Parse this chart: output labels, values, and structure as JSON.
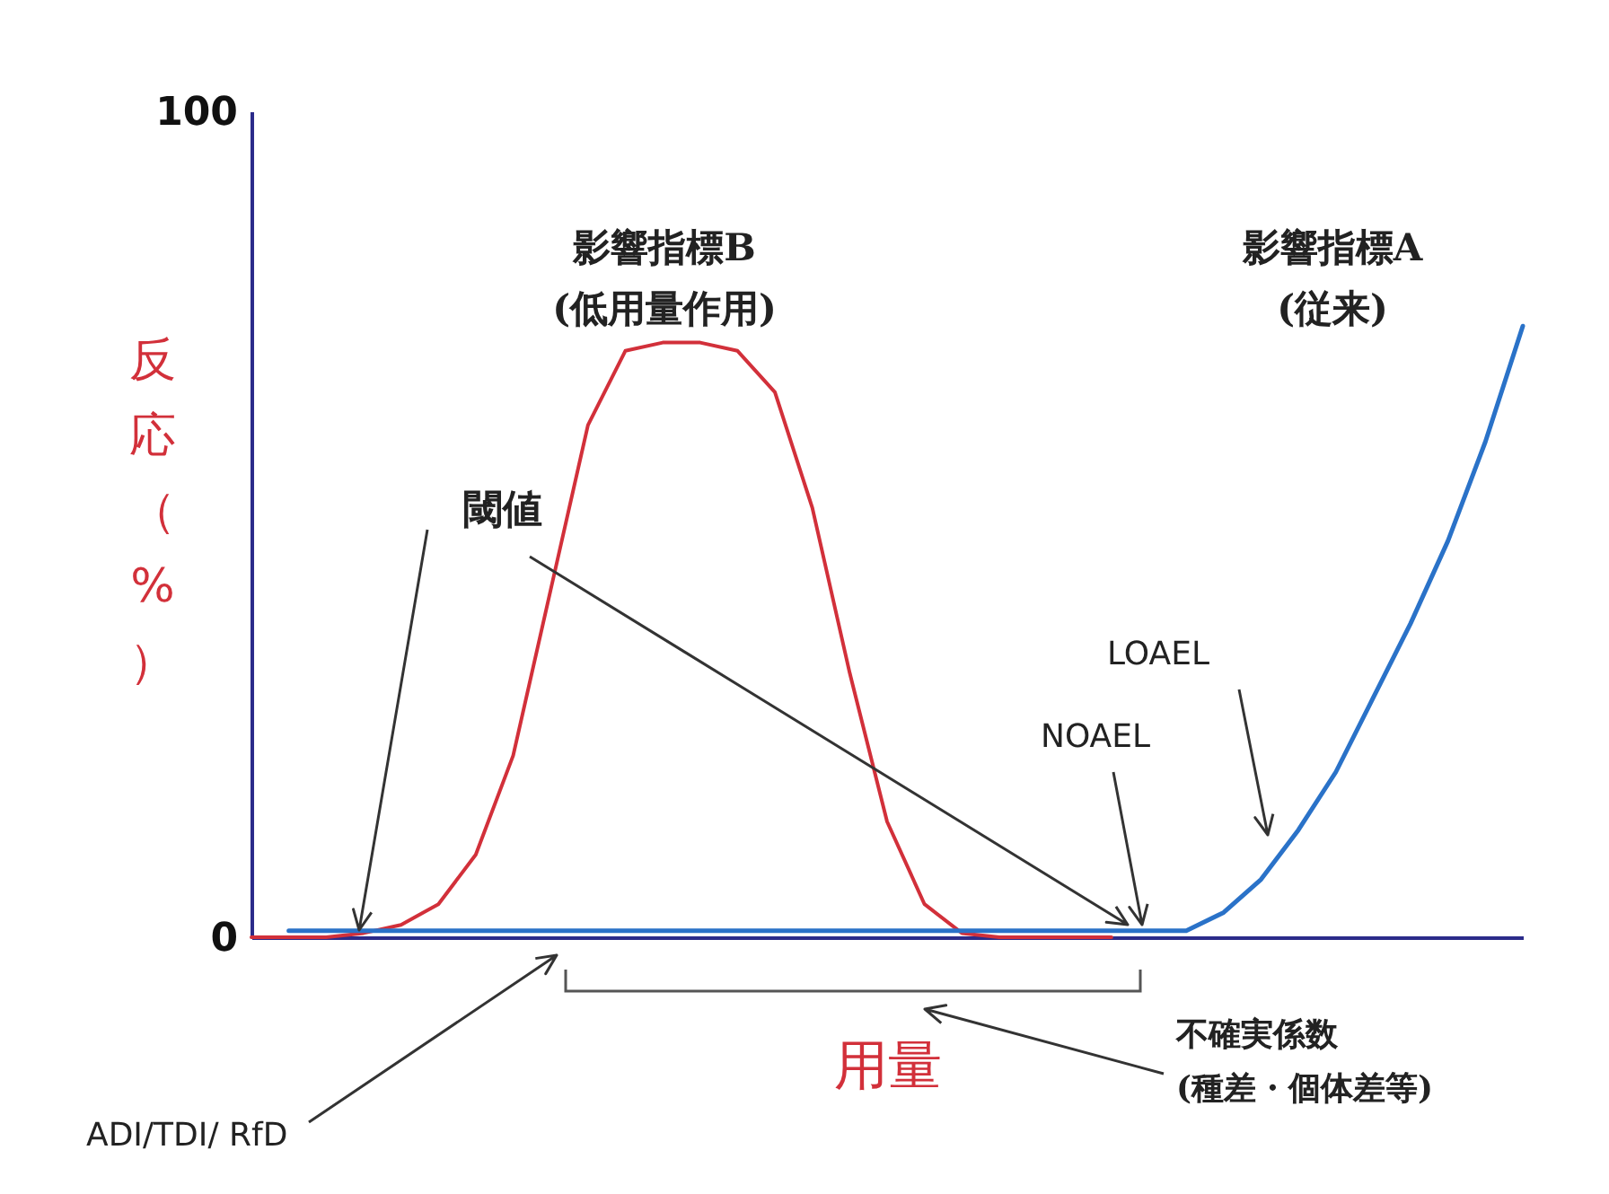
{
  "chart_data": {
    "type": "line",
    "ylabel": "反応（%）",
    "xlabel": "用量",
    "categories": [
      null,
      null,
      null,
      null,
      null,
      null,
      null,
      null,
      null,
      null,
      null,
      null,
      null,
      null,
      null,
      null,
      null,
      null,
      null,
      null,
      null,
      null,
      null,
      null,
      null,
      null,
      null,
      null,
      null,
      null,
      null,
      null,
      null,
      null,
      null
    ],
    "series": [
      {
        "name": "影響指標B\n(低用量作用)",
        "color": "#d2303a",
        "values": [
          0,
          0,
          0,
          0.5,
          1.5,
          4,
          10,
          22,
          42,
          62,
          71,
          72,
          72,
          71,
          66,
          52,
          32,
          14,
          4,
          0.5,
          0,
          0,
          0,
          0,
          null,
          null,
          null,
          null,
          null,
          null,
          null,
          null,
          null,
          null,
          null
        ]
      },
      {
        "name": "影響指標A\n(従来)",
        "color": "#2a72c8",
        "values": [
          null,
          0.8,
          0.8,
          0.8,
          0.8,
          0.8,
          0.8,
          0.8,
          0.8,
          0.8,
          0.8,
          0.8,
          0.8,
          0.8,
          0.8,
          0.8,
          0.8,
          0.8,
          0.8,
          0.8,
          0.8,
          0.8,
          0.8,
          0.8,
          0.8,
          0.8,
          3,
          7,
          13,
          20,
          29,
          38,
          48,
          60,
          74
        ]
      }
    ],
    "ylim": [
      0,
      100
    ],
    "yticks": [
      0,
      100
    ],
    "grid": false,
    "legend": false,
    "marker": "none",
    "line_style": "solid",
    "annotations": [
      "閾値",
      "NOAEL",
      "LOAEL",
      "ADI/TDI/ RfD",
      "不確実係数\n(種差・個体差等)"
    ]
  }
}
